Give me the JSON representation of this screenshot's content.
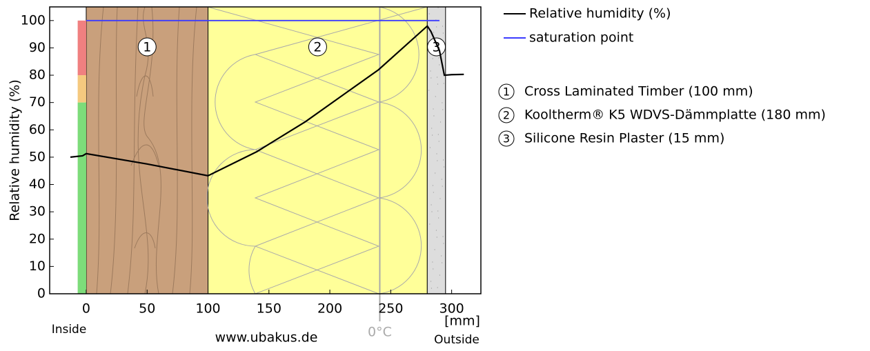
{
  "chart_data": {
    "type": "line",
    "y_label": "Relative humidity (%)",
    "x_unit": "[mm]",
    "inside_label": "Inside",
    "outside_label": "Outside",
    "watermark": "www.ubakus.de",
    "xlim": [
      -30,
      324
    ],
    "ylim": [
      0,
      105
    ],
    "xticks": [
      0,
      50,
      100,
      150,
      200,
      250,
      300
    ],
    "yticks": [
      0,
      10,
      20,
      30,
      40,
      50,
      60,
      70,
      80,
      90,
      100
    ],
    "layers": [
      {
        "number": "1",
        "name": "Cross Laminated Timber (100 mm)",
        "start": 0,
        "end": 100,
        "color": "#c9a07c"
      },
      {
        "number": "2",
        "name": "Kooltherm® K5 WDVS-Dämmplatte (180 mm)",
        "start": 100,
        "end": 280,
        "color": "#ffff99"
      },
      {
        "number": "3",
        "name": "Silicone Resin Plaster (15 mm)",
        "start": 280,
        "end": 295,
        "color": "#dddddd"
      }
    ],
    "zones": [
      {
        "from": 80,
        "to": 100,
        "color": "#f08080"
      },
      {
        "from": 70,
        "to": 80,
        "color": "#f5c97f"
      },
      {
        "from": 0,
        "to": 70,
        "color": "#7ddc7a"
      }
    ],
    "freezing_line": {
      "x": 241,
      "label": "0°C"
    },
    "series": [
      {
        "name": "Relative humidity (%)",
        "color": "#000000",
        "x": [
          -13,
          -3,
          0,
          50,
          100,
          140,
          180,
          240,
          280,
          283,
          290,
          294,
          300,
          310
        ],
        "values": [
          50,
          50.5,
          51.3,
          47.5,
          43.2,
          52,
          63,
          82,
          98,
          96,
          89,
          80,
          80.2,
          80.3
        ]
      },
      {
        "name": "saturation point",
        "color": "#3b3bff",
        "x": [
          0,
          290
        ],
        "values": [
          100,
          100
        ]
      }
    ]
  }
}
